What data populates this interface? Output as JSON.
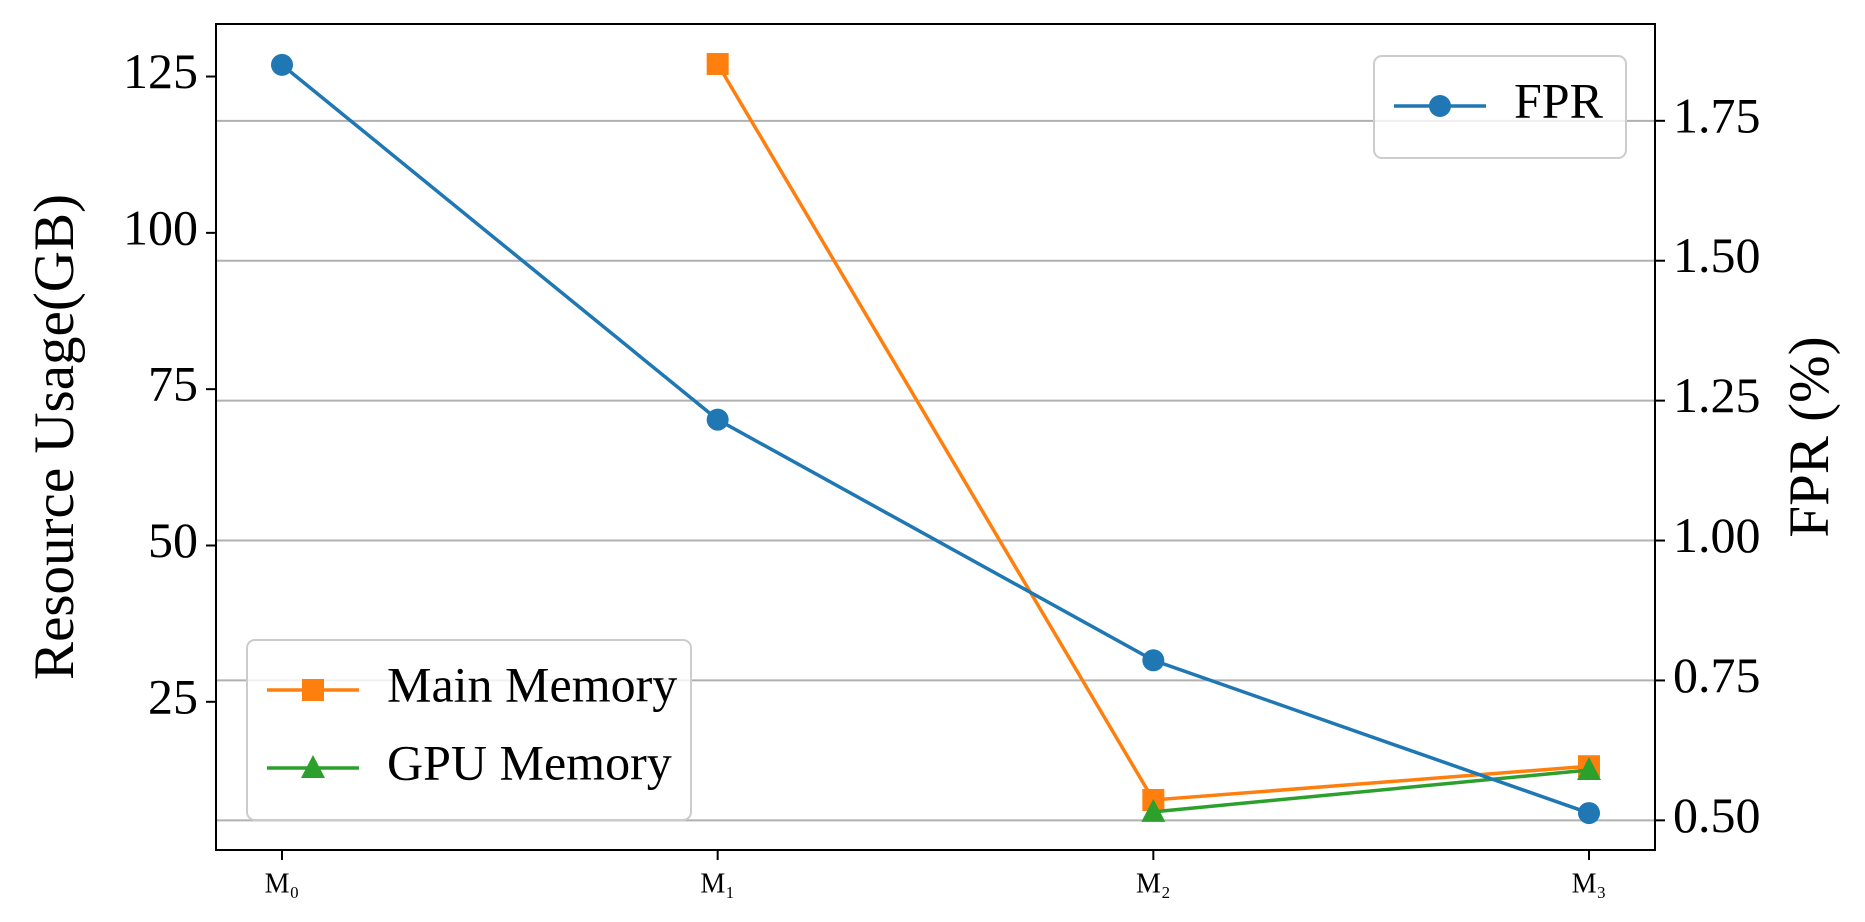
{
  "chart_data": {
    "type": "line",
    "categories": [
      "M₀",
      "M₁",
      "M₂",
      "M₃"
    ],
    "y_label": "Resource Usage(GB)",
    "y2_label": "FPR (%)",
    "ylim": [
      1.3,
      133.4
    ],
    "yticks": [
      25,
      50,
      75,
      100,
      125
    ],
    "y2lim": [
      0.447,
      1.923
    ],
    "y2ticks": [
      {
        "value": 0.5,
        "label": "0.50"
      },
      {
        "value": 0.75,
        "label": "0.75"
      },
      {
        "value": 1.0,
        "label": "1.00"
      },
      {
        "value": 1.25,
        "label": "1.25"
      },
      {
        "value": 1.5,
        "label": "1.50"
      },
      {
        "value": 1.75,
        "label": "1.75"
      }
    ],
    "grid": "y2",
    "legend": "lower left",
    "legend2": "upper right",
    "series": [
      {
        "name": "Main Memory",
        "color": "#ff7f0e",
        "marker": "square",
        "values": [
          null,
          127,
          9.3,
          14.7
        ]
      },
      {
        "name": "GPU Memory",
        "color": "#2ca02c",
        "marker": "triangle",
        "values": [
          null,
          null,
          7.4,
          14.1
        ]
      },
      {
        "name": "FPR",
        "color": "#1f77b4",
        "marker": "circle",
        "axis": "y2",
        "values": [
          1.85,
          1.216,
          0.786,
          0.513
        ]
      }
    ]
  }
}
